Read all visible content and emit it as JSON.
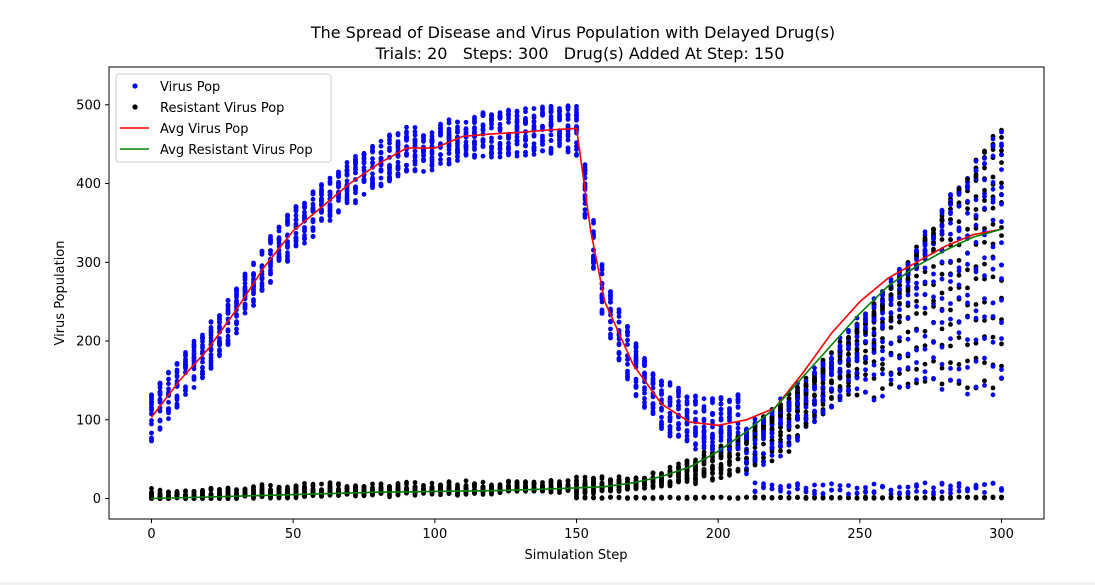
{
  "chart_data": {
    "type": "scatter",
    "title": "The Spread of Disease and Virus Population with Delayed Drug(s)",
    "subtitle": "Trials: 20   Steps: 300   Drug(s) Added At Step: 150",
    "xlabel": "Simulation Step",
    "ylabel": "Virus Population",
    "xlim": [
      -15,
      315
    ],
    "ylim": [
      -26,
      548
    ],
    "xticks": [
      0,
      50,
      100,
      150,
      200,
      250,
      300
    ],
    "yticks": [
      0,
      100,
      200,
      300,
      400,
      500
    ],
    "grid": false,
    "legend": "top-left",
    "series": [
      {
        "name": "Virus Pop",
        "kind": "scatter",
        "color": "#0000ff"
      },
      {
        "name": "Resistant Virus Pop",
        "kind": "scatter",
        "color": "#000000"
      },
      {
        "name": "Avg Virus Pop",
        "kind": "line",
        "color": "#ff0000",
        "x": [
          0,
          10,
          20,
          30,
          40,
          50,
          60,
          70,
          80,
          90,
          100,
          110,
          120,
          130,
          140,
          150,
          155,
          160,
          170,
          180,
          190,
          200,
          210,
          220,
          230,
          240,
          250,
          260,
          270,
          280,
          290,
          300
        ],
        "y": [
          103,
          150,
          190,
          240,
          295,
          340,
          370,
          400,
          425,
          445,
          445,
          460,
          463,
          465,
          468,
          470,
          340,
          250,
          170,
          120,
          97,
          93,
          100,
          115,
          160,
          210,
          250,
          280,
          300,
          320,
          335,
          342
        ]
      },
      {
        "name": "Avg Resistant Virus Pop",
        "kind": "line",
        "color": "#008000",
        "x": [
          0,
          20,
          40,
          60,
          80,
          100,
          120,
          140,
          160,
          170,
          180,
          190,
          200,
          210,
          220,
          230,
          240,
          250,
          260,
          270,
          280,
          290,
          300
        ],
        "y": [
          0,
          2,
          4,
          6,
          8,
          9,
          10,
          12,
          15,
          20,
          28,
          40,
          60,
          85,
          115,
          155,
          195,
          235,
          270,
          295,
          315,
          332,
          342
        ]
      }
    ]
  }
}
